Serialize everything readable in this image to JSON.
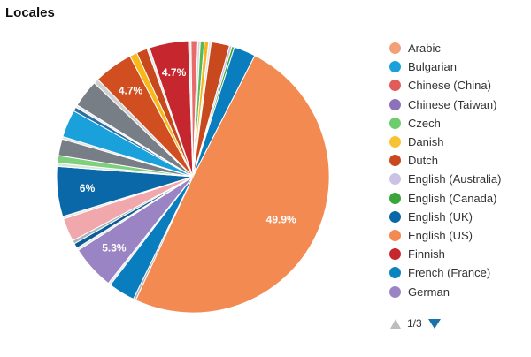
{
  "chart_data": {
    "type": "pie",
    "title": "Locales",
    "start_angle_deg": 27,
    "slices": [
      {
        "label": "English (US)",
        "value": 49.9,
        "color": "#f28a52",
        "text": "49.9%"
      },
      {
        "label": "",
        "value": 0.3,
        "color": "#b0b0b0"
      },
      {
        "label": "",
        "value": 3.2,
        "color": "#0a7dbf"
      },
      {
        "label": "",
        "value": 0.3,
        "color": "#e9e9e9"
      },
      {
        "label": "German",
        "value": 5.3,
        "color": "#9b84c4",
        "text": "5.3%"
      },
      {
        "label": "",
        "value": 0.3,
        "color": "#e6e6e6"
      },
      {
        "label": "",
        "value": 0.6,
        "color": "#0a5d96"
      },
      {
        "label": "",
        "value": 0.4,
        "color": "#a7b3bd"
      },
      {
        "label": "",
        "value": 2.8,
        "color": "#f1a8ad"
      },
      {
        "label": "",
        "value": 0.3,
        "color": "#e6e6e6"
      },
      {
        "label": "English (UK)",
        "value": 6.0,
        "color": "#0a68a8",
        "text": "6%"
      },
      {
        "label": "",
        "value": 0.4,
        "color": "#d8e8d8"
      },
      {
        "label": "",
        "value": 0.9,
        "color": "#7ed07e"
      },
      {
        "label": "",
        "value": 2.0,
        "color": "#777e85"
      },
      {
        "label": "",
        "value": 0.3,
        "color": "#e0e0e0"
      },
      {
        "label": "",
        "value": 3.3,
        "color": "#1aa1dc"
      },
      {
        "label": "",
        "value": 0.5,
        "color": "#2a6f9f"
      },
      {
        "label": "",
        "value": 0.3,
        "color": "#e9e9e9"
      },
      {
        "label": "",
        "value": 3.3,
        "color": "#777e85"
      },
      {
        "label": "",
        "value": 0.6,
        "color": "#d0d0d0"
      },
      {
        "label": "Dutch",
        "value": 4.7,
        "color": "#d14e20",
        "text": "4.7%"
      },
      {
        "label": "",
        "value": 0.9,
        "color": "#f8b81a"
      },
      {
        "label": "",
        "value": 1.3,
        "color": "#c8491d"
      },
      {
        "label": "",
        "value": 0.3,
        "color": "#e6e6e6"
      },
      {
        "label": "Finnish",
        "value": 4.7,
        "color": "#c6262e",
        "text": "4.7%"
      },
      {
        "label": "",
        "value": 0.3,
        "color": "#ededed"
      },
      {
        "label": "",
        "value": 0.8,
        "color": "#e86a6a"
      },
      {
        "label": "",
        "value": 0.3,
        "color": "#d8d8d8"
      },
      {
        "label": "",
        "value": 0.5,
        "color": "#57b857"
      },
      {
        "label": "",
        "value": 0.5,
        "color": "#f6b51f"
      },
      {
        "label": "",
        "value": 0.3,
        "color": "#e6e6e6"
      },
      {
        "label": "",
        "value": 2.2,
        "color": "#c8491d"
      },
      {
        "label": "",
        "value": 0.3,
        "color": "#c8c0e4"
      },
      {
        "label": "",
        "value": 0.3,
        "color": "#3aa63a"
      },
      {
        "label": "",
        "value": 2.6,
        "color": "#0a7dbf"
      }
    ],
    "legend": {
      "position": "right",
      "items": [
        {
          "label": "Arabic",
          "color": "#f2a07a"
        },
        {
          "label": "Bulgarian",
          "color": "#1aa1dc"
        },
        {
          "label": "Chinese (China)",
          "color": "#e25b5b"
        },
        {
          "label": "Chinese (Taiwan)",
          "color": "#8b72bb"
        },
        {
          "label": "Czech",
          "color": "#6dcc6d"
        },
        {
          "label": "Danish",
          "color": "#f8c332"
        },
        {
          "label": "Dutch",
          "color": "#c8491d"
        },
        {
          "label": "English (Australia)",
          "color": "#ccc2e4"
        },
        {
          "label": "English (Canada)",
          "color": "#3aa63a"
        },
        {
          "label": "English (UK)",
          "color": "#0a68a8"
        },
        {
          "label": "English (US)",
          "color": "#f28a52"
        },
        {
          "label": "Finnish",
          "color": "#c6262e"
        },
        {
          "label": "French (France)",
          "color": "#0a85bd"
        },
        {
          "label": "German",
          "color": "#9b84c4"
        }
      ]
    },
    "pager": {
      "text": "1/3",
      "prev_icon": "triangle-up-icon",
      "next_icon": "triangle-down-icon"
    }
  }
}
